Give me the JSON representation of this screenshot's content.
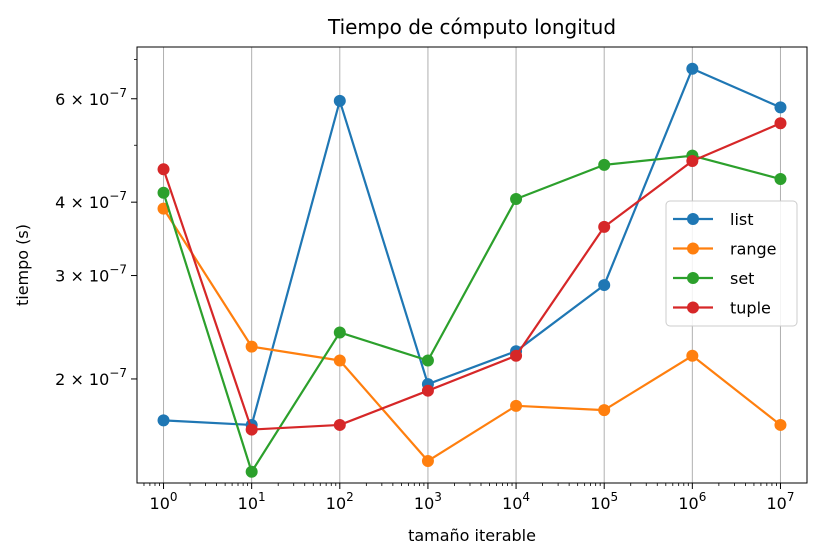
{
  "chart_data": {
    "type": "line",
    "title": "Tiempo de cómputo longitud",
    "xlabel": "tamaño iterable",
    "ylabel": "tiempo (s)",
    "x_scale": "log",
    "y_scale": "log",
    "x": [
      1,
      10,
      100,
      1000,
      10000,
      100000,
      1000000,
      10000000
    ],
    "x_tick_labels": [
      {
        "base": "10",
        "exp": "0"
      },
      {
        "base": "10",
        "exp": "1"
      },
      {
        "base": "10",
        "exp": "2"
      },
      {
        "base": "10",
        "exp": "3"
      },
      {
        "base": "10",
        "exp": "4"
      },
      {
        "base": "10",
        "exp": "5"
      },
      {
        "base": "10",
        "exp": "6"
      },
      {
        "base": "10",
        "exp": "7"
      }
    ],
    "y_ticks": [
      2e-07,
      3e-07,
      4e-07,
      6e-07
    ],
    "y_tick_labels": [
      {
        "mant": "2",
        "exp": "−7"
      },
      {
        "mant": "3",
        "exp": "−7"
      },
      {
        "mant": "4",
        "exp": "−7"
      },
      {
        "mant": "6",
        "exp": "−7"
      }
    ],
    "xlim": [
      0.5,
      20000000
    ],
    "ylim": [
      1.33e-07,
      7.35e-07
    ],
    "grid": "x-major",
    "legend_position": "center-right",
    "series": [
      {
        "name": "list",
        "color": "#1f77b4",
        "values": [
          1.7e-07,
          1.67e-07,
          5.95e-07,
          1.96e-07,
          2.23e-07,
          2.89e-07,
          6.75e-07,
          5.8e-07
        ]
      },
      {
        "name": "range",
        "color": "#ff7f0e",
        "values": [
          3.9e-07,
          2.27e-07,
          2.15e-07,
          1.45e-07,
          1.8e-07,
          1.77e-07,
          2.19e-07,
          1.67e-07
        ]
      },
      {
        "name": "set",
        "color": "#2ca02c",
        "values": [
          4.15e-07,
          1.39e-07,
          2.4e-07,
          2.15e-07,
          4.05e-07,
          4.63e-07,
          4.8e-07,
          4.38e-07
        ]
      },
      {
        "name": "tuple",
        "color": "#d62728",
        "values": [
          4.55e-07,
          1.64e-07,
          1.67e-07,
          1.91e-07,
          2.19e-07,
          3.63e-07,
          4.7e-07,
          5.45e-07
        ]
      }
    ]
  }
}
